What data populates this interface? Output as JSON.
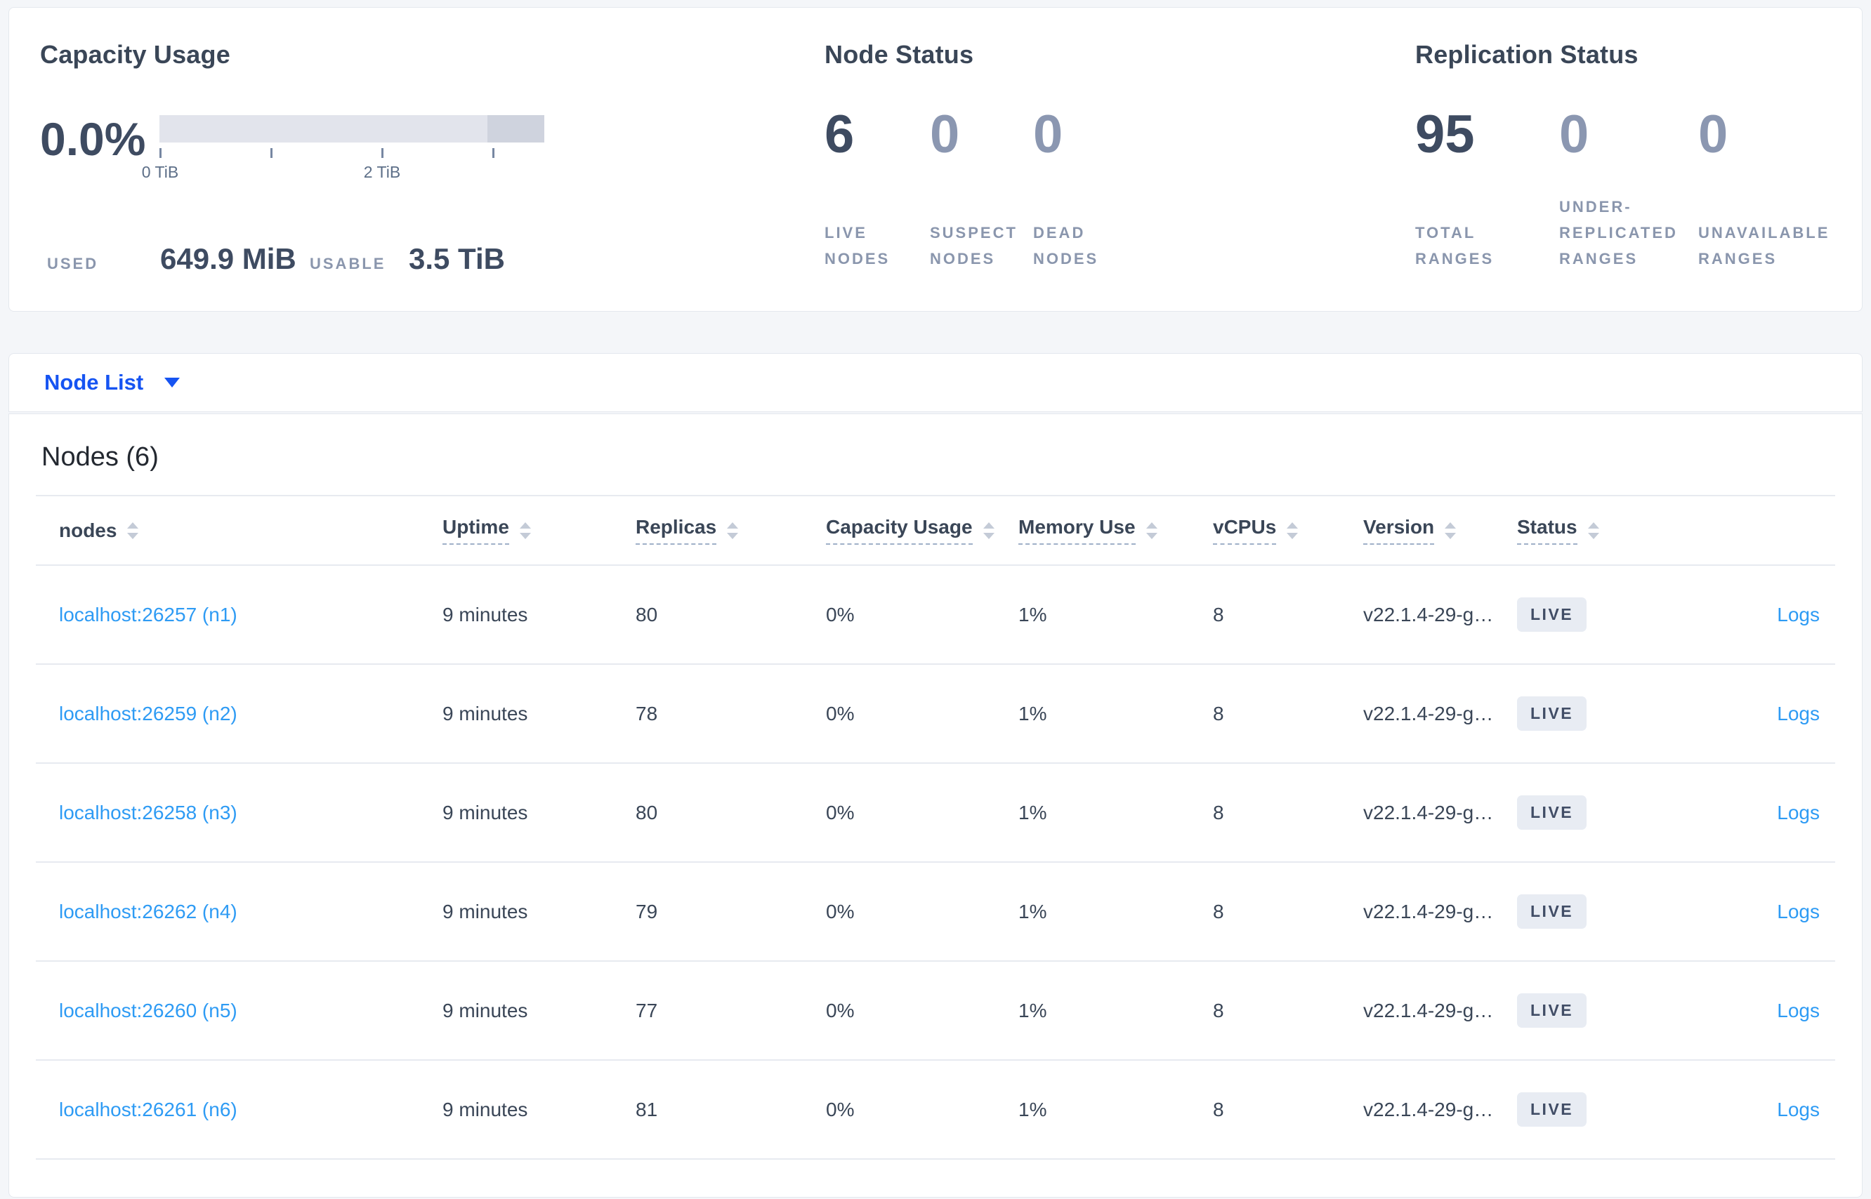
{
  "summary": {
    "capacity": {
      "title": "Capacity Usage",
      "percent": "0.0%",
      "bar": {
        "total_tib": 3.5,
        "dark_segment_from_tib": 3.0,
        "tick_interval_tib": 1,
        "tick_labels": [
          "0 TiB",
          "2 TiB"
        ]
      },
      "used_label": "USED",
      "used_value": "649.9 MiB",
      "usable_label": "USABLE",
      "usable_value": "3.5 TiB"
    },
    "node_status": {
      "title": "Node Status",
      "stats": [
        {
          "value": "6",
          "label": "LIVE\nNODES",
          "emphasis": true
        },
        {
          "value": "0",
          "label": "SUSPECT\nNODES",
          "emphasis": false
        },
        {
          "value": "0",
          "label": "DEAD\nNODES",
          "emphasis": false
        }
      ]
    },
    "replication": {
      "title": "Replication Status",
      "stats": [
        {
          "value": "95",
          "label": "TOTAL\nRANGES",
          "emphasis": true
        },
        {
          "value": "0",
          "label": "UNDER-\nREPLICATED\nRANGES",
          "emphasis": false
        },
        {
          "value": "0",
          "label": "UNAVAILABLE\nRANGES",
          "emphasis": false
        }
      ]
    }
  },
  "view_selector": {
    "label": "Node List"
  },
  "table": {
    "title": "Nodes (6)",
    "logs_label": "Logs",
    "columns": [
      {
        "label": "nodes",
        "underline": false
      },
      {
        "label": "Uptime",
        "underline": true
      },
      {
        "label": "Replicas",
        "underline": true
      },
      {
        "label": "Capacity Usage",
        "underline": true
      },
      {
        "label": "Memory Use",
        "underline": true
      },
      {
        "label": "vCPUs",
        "underline": true
      },
      {
        "label": "Version",
        "underline": true
      },
      {
        "label": "Status",
        "underline": true
      }
    ],
    "rows": [
      {
        "node": "localhost:26257 (n1)",
        "uptime": "9 minutes",
        "replicas": "80",
        "capacity_usage": "0%",
        "memory_use": "1%",
        "vcpus": "8",
        "version": "v22.1.4-29-g…",
        "status": "LIVE"
      },
      {
        "node": "localhost:26259 (n2)",
        "uptime": "9 minutes",
        "replicas": "78",
        "capacity_usage": "0%",
        "memory_use": "1%",
        "vcpus": "8",
        "version": "v22.1.4-29-g…",
        "status": "LIVE"
      },
      {
        "node": "localhost:26258 (n3)",
        "uptime": "9 minutes",
        "replicas": "80",
        "capacity_usage": "0%",
        "memory_use": "1%",
        "vcpus": "8",
        "version": "v22.1.4-29-g…",
        "status": "LIVE"
      },
      {
        "node": "localhost:26262 (n4)",
        "uptime": "9 minutes",
        "replicas": "79",
        "capacity_usage": "0%",
        "memory_use": "1%",
        "vcpus": "8",
        "version": "v22.1.4-29-g…",
        "status": "LIVE"
      },
      {
        "node": "localhost:26260 (n5)",
        "uptime": "9 minutes",
        "replicas": "77",
        "capacity_usage": "0%",
        "memory_use": "1%",
        "vcpus": "8",
        "version": "v22.1.4-29-g…",
        "status": "LIVE"
      },
      {
        "node": "localhost:26261 (n6)",
        "uptime": "9 minutes",
        "replicas": "81",
        "capacity_usage": "0%",
        "memory_use": "1%",
        "vcpus": "8",
        "version": "v22.1.4-29-g…",
        "status": "LIVE"
      }
    ]
  }
}
